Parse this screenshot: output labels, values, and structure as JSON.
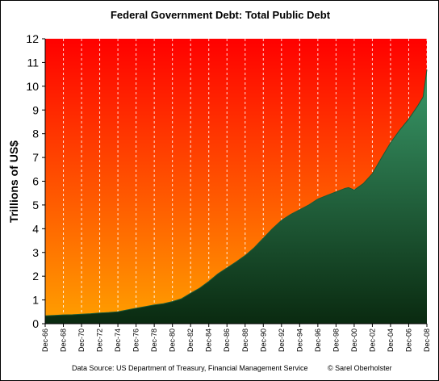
{
  "chart_data": {
    "type": "area",
    "title": "Federal Government Debt:  Total Public Debt",
    "ylabel": "Trillions of US$",
    "xlabel": "",
    "ylim": [
      0,
      12
    ],
    "yticks": [
      0,
      1,
      2,
      3,
      4,
      5,
      6,
      7,
      8,
      9,
      10,
      11,
      12
    ],
    "xlim": [
      1966.92,
      2008.92
    ],
    "xticks": [
      {
        "x": 1966.92,
        "label": "Dec-66"
      },
      {
        "x": 1968.92,
        "label": "Dec-68"
      },
      {
        "x": 1970.92,
        "label": "Dec-70"
      },
      {
        "x": 1972.92,
        "label": "Dec-72"
      },
      {
        "x": 1974.92,
        "label": "Dec-74"
      },
      {
        "x": 1976.92,
        "label": "Dec-76"
      },
      {
        "x": 1978.92,
        "label": "Dec-78"
      },
      {
        "x": 1980.92,
        "label": "Dec-80"
      },
      {
        "x": 1982.92,
        "label": "Dec-82"
      },
      {
        "x": 1984.92,
        "label": "Dec-84"
      },
      {
        "x": 1986.92,
        "label": "Dec-86"
      },
      {
        "x": 1988.92,
        "label": "Dec-88"
      },
      {
        "x": 1990.92,
        "label": "Dec-90"
      },
      {
        "x": 1992.92,
        "label": "Dec-92"
      },
      {
        "x": 1994.92,
        "label": "Dec-94"
      },
      {
        "x": 1996.92,
        "label": "Dec-96"
      },
      {
        "x": 1998.92,
        "label": "Dec-98"
      },
      {
        "x": 2000.92,
        "label": "Dec-00"
      },
      {
        "x": 2002.92,
        "label": "Dec-02"
      },
      {
        "x": 2004.92,
        "label": "Dec-04"
      },
      {
        "x": 2006.92,
        "label": "Dec-06"
      },
      {
        "x": 2008.92,
        "label": "Dec-08"
      }
    ],
    "grid": {
      "vertical": true,
      "style": "dashed"
    },
    "background_gradient": {
      "top": "#ff0000",
      "bottom": "#ffa000"
    },
    "area_gradient": {
      "top": "#3a9a6a",
      "bottom": "#0a2a10"
    },
    "series": [
      {
        "x": [
          1966.92,
          1967.92,
          1968.92,
          1969.92,
          1970.92,
          1971.92,
          1972.92,
          1973.92,
          1974.92,
          1975.92,
          1976.92,
          1977.92,
          1978.92,
          1979.92,
          1980.92,
          1981.92,
          1982.92,
          1983.92,
          1984.92,
          1985.92,
          1986.92,
          1987.92,
          1988.92,
          1989.92,
          1990.92,
          1991.92,
          1992.92,
          1993.92,
          1994.92,
          1995.92,
          1996.92,
          1997.92,
          1998.92,
          1999.92,
          2000.3,
          2000.92,
          2001.92,
          2002.92,
          2003.92,
          2004.92,
          2005.92,
          2006.92,
          2007.92,
          2008.5,
          2008.92
        ],
        "values": [
          0.33,
          0.35,
          0.37,
          0.38,
          0.4,
          0.42,
          0.45,
          0.47,
          0.5,
          0.58,
          0.65,
          0.72,
          0.79,
          0.84,
          0.93,
          1.05,
          1.28,
          1.5,
          1.78,
          2.1,
          2.35,
          2.6,
          2.87,
          3.2,
          3.6,
          4.0,
          4.35,
          4.6,
          4.8,
          5.0,
          5.25,
          5.4,
          5.55,
          5.7,
          5.73,
          5.63,
          5.9,
          6.32,
          6.98,
          7.62,
          8.15,
          8.62,
          9.18,
          9.55,
          10.7
        ]
      }
    ]
  },
  "footer": {
    "source": "Data Source: US Department of Treasury, Financial Management Service",
    "copyright": "© Sarel Oberholster"
  }
}
